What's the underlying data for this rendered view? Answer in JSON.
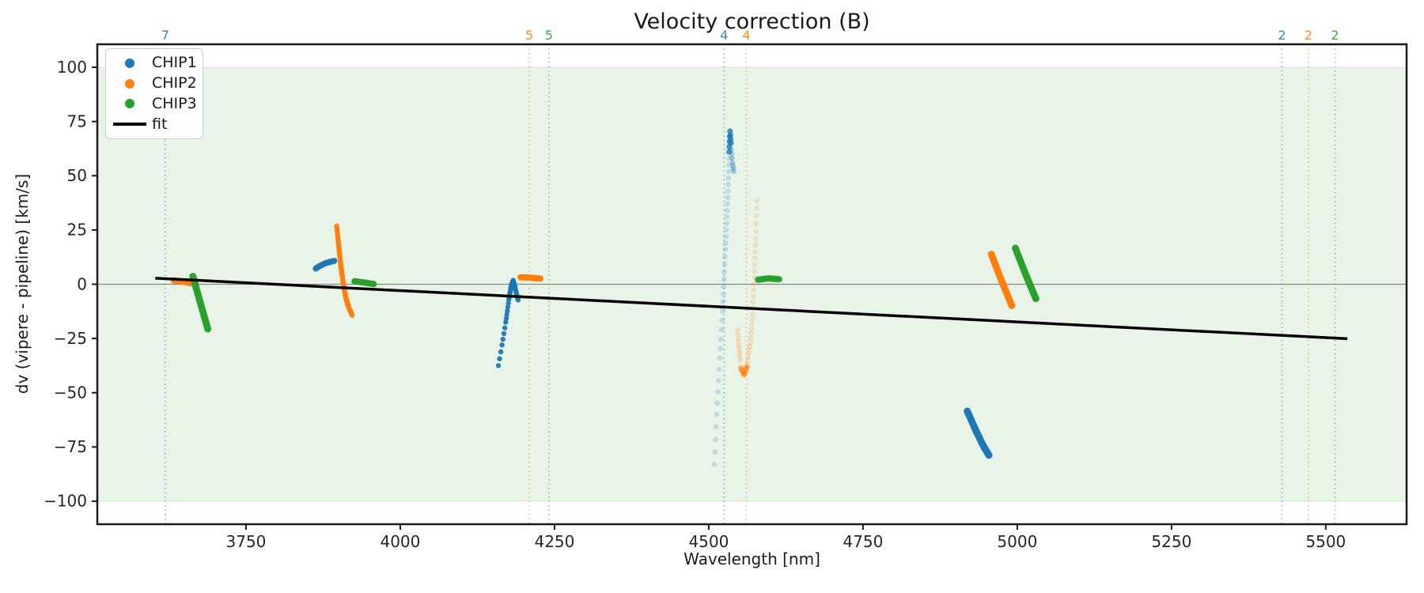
{
  "title": "Velocity correction (B)",
  "axes": {
    "xlabel": "Wavelength [nm]",
    "ylabel": "dv (vipere - pipeline) [km/s]"
  },
  "legend": {
    "position": "upper left",
    "items": [
      {
        "label": "CHIP1",
        "color": "#1f77b4",
        "marker": "dot"
      },
      {
        "label": "CHIP2",
        "color": "#ff7f0e",
        "marker": "dot"
      },
      {
        "label": "CHIP3",
        "color": "#2ca02c",
        "marker": "dot"
      },
      {
        "label": "fit",
        "color": "#000000",
        "marker": "line"
      }
    ]
  },
  "colors": {
    "axis": "#1a1a1a",
    "tick_text": "#262626",
    "zero_line": "#888888",
    "band_fill": "#008000"
  },
  "chart_data": {
    "type": "scatter",
    "title": "Velocity correction (B)",
    "xlabel": "Wavelength [nm]",
    "ylabel": "dv (vipere - pipeline) [km/s]",
    "grid": false,
    "xlim": [
      3509,
      5631
    ],
    "ylim": [
      -110.6,
      110.6
    ],
    "xticks": [
      {
        "v": 3750,
        "label": "3750"
      },
      {
        "v": 4000,
        "label": "4000"
      },
      {
        "v": 4250,
        "label": "4250"
      },
      {
        "v": 4500,
        "label": "4500"
      },
      {
        "v": 4750,
        "label": "4750"
      },
      {
        "v": 5000,
        "label": "5000"
      },
      {
        "v": 5250,
        "label": "5250"
      },
      {
        "v": 5500,
        "label": "5500"
      }
    ],
    "yticks": [
      {
        "v": 100,
        "label": "100"
      },
      {
        "v": 75,
        "label": "75"
      },
      {
        "v": 50,
        "label": "50"
      },
      {
        "v": 25,
        "label": "25"
      },
      {
        "v": 0,
        "label": "0"
      },
      {
        "v": -25,
        "label": "−25"
      },
      {
        "v": -50,
        "label": "−50"
      },
      {
        "v": -75,
        "label": "−75"
      },
      {
        "v": -100,
        "label": "−100"
      }
    ],
    "shaded_band": {
      "ymin": -100,
      "ymax": 100,
      "color": "#008000",
      "opacity": 0.085
    },
    "zero_line": {
      "y": 0,
      "color": "#888888",
      "width": 1.2
    },
    "vlines": [
      {
        "x": 3619,
        "series": "CHIP1",
        "label": "7"
      },
      {
        "x": 4209,
        "series": "CHIP2",
        "label": "5"
      },
      {
        "x": 4241,
        "series": "CHIP3",
        "label": "5"
      },
      {
        "x": 4525,
        "series": "CHIP1",
        "label": "4"
      },
      {
        "x": 4561,
        "series": "CHIP2",
        "label": "4"
      },
      {
        "x": 5429,
        "series": "CHIP1",
        "label": "2"
      },
      {
        "x": 5472,
        "series": "CHIP2",
        "label": "2"
      },
      {
        "x": 5515,
        "series": "CHIP3",
        "label": "2"
      }
    ],
    "fit_line": {
      "name": "fit",
      "from": [
        3603,
        2.8
      ],
      "to": [
        5535,
        -25.1
      ],
      "color": "#000000",
      "width": 3.5
    },
    "series": [
      {
        "name": "CHIP1",
        "color": "#1f77b4",
        "clusters": [
          {
            "r": 3.8,
            "alpha": 1,
            "path": [
              [
                3863,
                7.2
              ],
              [
                3870,
                8.5
              ],
              [
                3880,
                9.8
              ],
              [
                3893,
                10.8
              ]
            ],
            "n": [
              7,
              7,
              8
            ]
          },
          {
            "r": 3.2,
            "alpha": 0.95,
            "path": [
              [
                4159,
                -37.5
              ],
              [
                4165,
                -28
              ],
              [
                4171,
                -17.5
              ],
              [
                4176,
                -7
              ],
              [
                4180,
                -0.5
              ],
              [
                4183,
                1.8
              ],
              [
                4185.5,
                -0.5
              ],
              [
                4188,
                -4
              ],
              [
                4191,
                -7.2
              ]
            ],
            "n": [
              3,
              4,
              6,
              8,
              6,
              4,
              4,
              4
            ]
          },
          {
            "r": 3.4,
            "alpha": 0.2,
            "path": [
              [
                4509,
                -83
              ],
              [
                4513,
                -60
              ],
              [
                4518,
                -34
              ],
              [
                4523,
                -8
              ],
              [
                4527,
                16
              ],
              [
                4531,
                40
              ],
              [
                4533,
                58
              ]
            ],
            "n": [
              4,
              5,
              6,
              7,
              8,
              6
            ]
          },
          {
            "r": 3.6,
            "alpha": 0.8,
            "path": [
              [
                4533,
                61
              ],
              [
                4534.5,
                70.5
              ],
              [
                4536,
                65
              ]
            ],
            "n": [
              4,
              3
            ]
          },
          {
            "r": 3.4,
            "alpha": 0.35,
            "path": [
              [
                4536.5,
                62
              ],
              [
                4538.5,
                56
              ],
              [
                4540.5,
                52
              ]
            ],
            "n": [
              3,
              3
            ]
          },
          {
            "r": 4.5,
            "alpha": 1,
            "path": [
              [
                4919,
                -58.5
              ],
              [
                4933,
                -67.5
              ],
              [
                4945,
                -74.5
              ],
              [
                4954,
                -78.8
              ]
            ],
            "n": [
              11,
              10,
              9
            ]
          }
        ]
      },
      {
        "name": "CHIP2",
        "color": "#ff7f0e",
        "clusters": [
          {
            "r": 4,
            "alpha": 1,
            "path": [
              [
                3633,
                1.8
              ],
              [
                3650,
                1.1
              ],
              [
                3665,
                0.3
              ]
            ],
            "n": [
              9,
              8
            ]
          },
          {
            "r": 3.4,
            "alpha": 0.95,
            "path": [
              [
                3897,
                26.8
              ],
              [
                3900.5,
                17
              ],
              [
                3904,
                8
              ],
              [
                3907.5,
                0.5
              ],
              [
                3912,
                -6.5
              ],
              [
                3917,
                -11
              ],
              [
                3922,
                -14.2
              ]
            ],
            "n": [
              8,
              8,
              8,
              8,
              7,
              6
            ]
          },
          {
            "r": 4,
            "alpha": 1,
            "path": [
              [
                4195,
                3.2
              ],
              [
                4211,
                3.0
              ],
              [
                4227,
                2.6
              ]
            ],
            "n": [
              8,
              8
            ]
          },
          {
            "r": 3.4,
            "alpha": 0.18,
            "path": [
              [
                4578,
                38.5
              ],
              [
                4576,
                21
              ],
              [
                4574,
                3
              ],
              [
                4571,
                -14
              ],
              [
                4567,
                -27
              ],
              [
                4562,
                -37
              ]
            ],
            "n": [
              5,
              6,
              6,
              6,
              6
            ]
          },
          {
            "r": 3.6,
            "alpha": 0.5,
            "path": [
              [
                4562,
                -38
              ],
              [
                4557,
                -41.8
              ],
              [
                4552,
                -38.5
              ]
            ],
            "n": [
              5,
              4
            ]
          },
          {
            "r": 3.4,
            "alpha": 0.22,
            "path": [
              [
                4551,
                -35
              ],
              [
                4548.5,
                -27.5
              ],
              [
                4547,
                -21
              ]
            ],
            "n": [
              4,
              3
            ]
          },
          {
            "r": 4.5,
            "alpha": 1,
            "path": [
              [
                4958,
                13.8
              ],
              [
                4974,
                2
              ],
              [
                4991,
                -9.8
              ]
            ],
            "n": [
              13,
              13
            ]
          }
        ]
      },
      {
        "name": "CHIP3",
        "color": "#2ca02c",
        "clusters": [
          {
            "r": 4.5,
            "alpha": 1,
            "path": [
              [
                3664,
                3.6
              ],
              [
                3676,
                -8.5
              ],
              [
                3688,
                -20.6
              ]
            ],
            "n": [
              11,
              11
            ]
          },
          {
            "r": 4,
            "alpha": 1,
            "path": [
              [
                3926,
                1.4
              ],
              [
                3941,
                0.8
              ],
              [
                3957,
                0.1
              ]
            ],
            "n": [
              8,
              8
            ]
          },
          {
            "r": 4,
            "alpha": 1,
            "path": [
              [
                4580,
                2.1
              ],
              [
                4597,
                2.7
              ],
              [
                4614,
                2.3
              ]
            ],
            "n": [
              9,
              9
            ]
          },
          {
            "r": 4.5,
            "alpha": 1,
            "path": [
              [
                4997,
                16.6
              ],
              [
                5013,
                5
              ],
              [
                5030,
                -6.6
              ]
            ],
            "n": [
              12,
              12
            ]
          }
        ]
      }
    ]
  }
}
